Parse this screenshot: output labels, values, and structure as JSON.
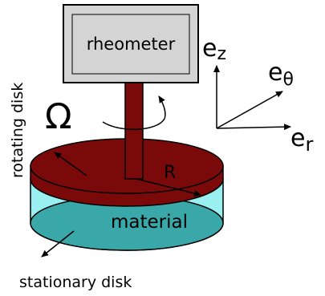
{
  "labels": {
    "device": "rheometer",
    "angular_velocity": "Ω",
    "radius": "R",
    "material": "material",
    "rotating_disk": "rotating disk",
    "stationary_disk": "stationary disk"
  },
  "axes": {
    "z": {
      "base": "e",
      "sub": "z"
    },
    "theta": {
      "base": "e",
      "sub": "θ"
    },
    "r": {
      "base": "e",
      "sub": "r"
    }
  },
  "colors": {
    "device_fill": "#d4d4d4",
    "shaft": "#7a0a0a",
    "rotating_disk": "#7a0a0a",
    "material_side": "#9af0f0",
    "stationary_disk": "#3aa8a8",
    "outline": "#000000"
  }
}
